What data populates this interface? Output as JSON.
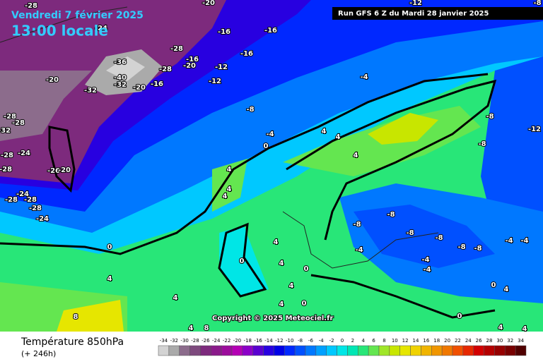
{
  "header": {
    "date": "Vendredi 7 février 2025",
    "time": "13:00 locale",
    "run": "Run GFS 6 Z du Mardi 28 janvier 2025"
  },
  "footer": {
    "title": "Température 850hPa",
    "lead": "(+ 246h)",
    "copyright": "Copyright © 2025 Meteociel.fr"
  },
  "legend": {
    "values": [
      -34,
      -32,
      -30,
      -28,
      -26,
      -24,
      -22,
      -20,
      -18,
      -16,
      -14,
      -12,
      -10,
      -8,
      -6,
      -4,
      -2,
      0,
      2,
      4,
      6,
      8,
      10,
      12,
      14,
      16,
      18,
      20,
      22,
      24,
      26,
      28,
      30,
      32,
      34
    ],
    "colors": [
      "#d3d3d3",
      "#aaaaaa",
      "#8c6c8c",
      "#7e4a7e",
      "#7d2a7d",
      "#8a1a8a",
      "#9c0c9c",
      "#b400b4",
      "#8c00c8",
      "#5a00d0",
      "#2800e0",
      "#0000e6",
      "#0028ff",
      "#0050ff",
      "#0078ff",
      "#00a0ff",
      "#00c8ff",
      "#00e6e6",
      "#00e6b4",
      "#28e678",
      "#64e650",
      "#a0e628",
      "#c8e600",
      "#e6e600",
      "#f0d200",
      "#f0b400",
      "#f09600",
      "#f07800",
      "#f05000",
      "#e62800",
      "#d20000",
      "#b40000",
      "#960000",
      "#780000",
      "#500000"
    ]
  },
  "map_labels": [
    "-20",
    "-28",
    "-12",
    "-8",
    "-24",
    "-16",
    "-16",
    "-28",
    "-16",
    "-16",
    "-20",
    "-28",
    "-12",
    "-36",
    "-40",
    "-32",
    "-32",
    "-20",
    "-16",
    "-12",
    "-20",
    "-4",
    "-8",
    "-28",
    "-28",
    "-32",
    "-8",
    "-12",
    "-4",
    "4",
    "4",
    "0",
    "-8",
    "-24",
    "-28",
    "-26",
    "-20",
    "-28",
    "4",
    "4",
    "4",
    "4",
    "-24",
    "-28",
    "-28",
    "-28",
    "-24",
    "-8",
    "-8",
    "-8",
    "-8",
    "-8",
    "-8",
    "-4",
    "-4",
    "0",
    "4",
    "-4",
    "0",
    "4",
    "4",
    "0",
    "-4",
    "-4",
    "4",
    "4",
    "0",
    "4",
    "0",
    "8",
    "4",
    "0",
    "4",
    "8",
    "4",
    "4"
  ]
}
